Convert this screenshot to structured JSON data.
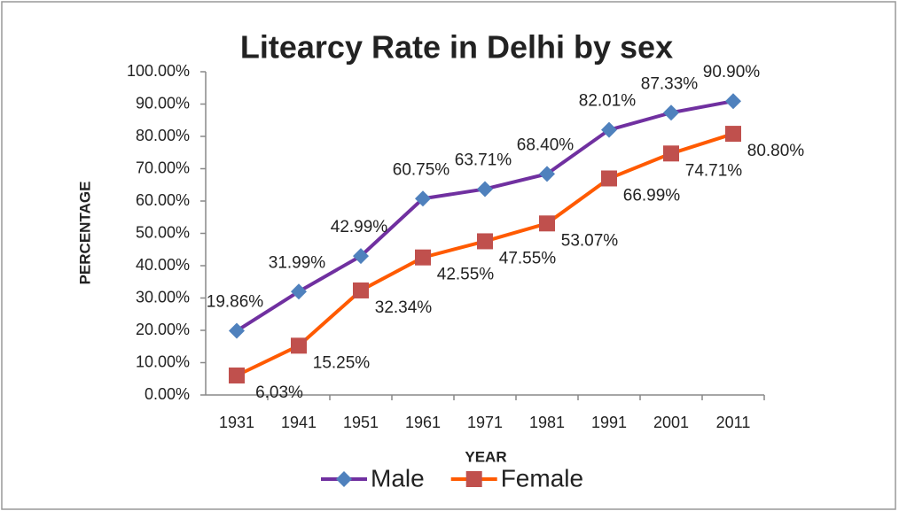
{
  "chart_data": {
    "type": "line",
    "title": "Litearcy Rate in Delhi by sex",
    "x_label": "YEAR",
    "y_label": "PERCENTAGE",
    "categories": [
      "1931",
      "1941",
      "1951",
      "1961",
      "1971",
      "1981",
      "1991",
      "2001",
      "2011"
    ],
    "series": [
      {
        "name": "Male",
        "color": "#7030a0",
        "marker_color": "#4f81bd",
        "marker": "diamond",
        "values": [
          19.86,
          31.99,
          42.99,
          60.75,
          63.71,
          68.4,
          82.01,
          87.33,
          90.9
        ],
        "value_labels": [
          "19.86%",
          "31.99%",
          "42.99%",
          "60.75%",
          "63.71%",
          "68.40%",
          "82.01%",
          "87.33%",
          "90.90%"
        ]
      },
      {
        "name": "Female",
        "color": "#ff5a00",
        "marker_color": "#c0504d",
        "marker": "square",
        "values": [
          6.03,
          15.25,
          32.34,
          42.55,
          47.55,
          53.07,
          66.99,
          74.71,
          80.8
        ],
        "value_labels": [
          "6.03%",
          "15.25%",
          "32.34%",
          "42.55%",
          "47.55%",
          "53.07%",
          "66.99%",
          "74.71%",
          "80.80%"
        ]
      }
    ],
    "ylim": [
      0,
      100
    ],
    "yticks": [
      {
        "value": 0,
        "label": "0.00%"
      },
      {
        "value": 10,
        "label": "10.00%"
      },
      {
        "value": 20,
        "label": "20.00%"
      },
      {
        "value": 30,
        "label": "30.00%"
      },
      {
        "value": 40,
        "label": "40.00%"
      },
      {
        "value": 50,
        "label": "50.00%"
      },
      {
        "value": 60,
        "label": "60.00%"
      },
      {
        "value": 70,
        "label": "70.00%"
      },
      {
        "value": 80,
        "label": "80.00%"
      },
      {
        "value": 90,
        "label": "90.00%"
      },
      {
        "value": 100,
        "label": "100.00%"
      }
    ],
    "grid": false,
    "legend": "bottom"
  }
}
